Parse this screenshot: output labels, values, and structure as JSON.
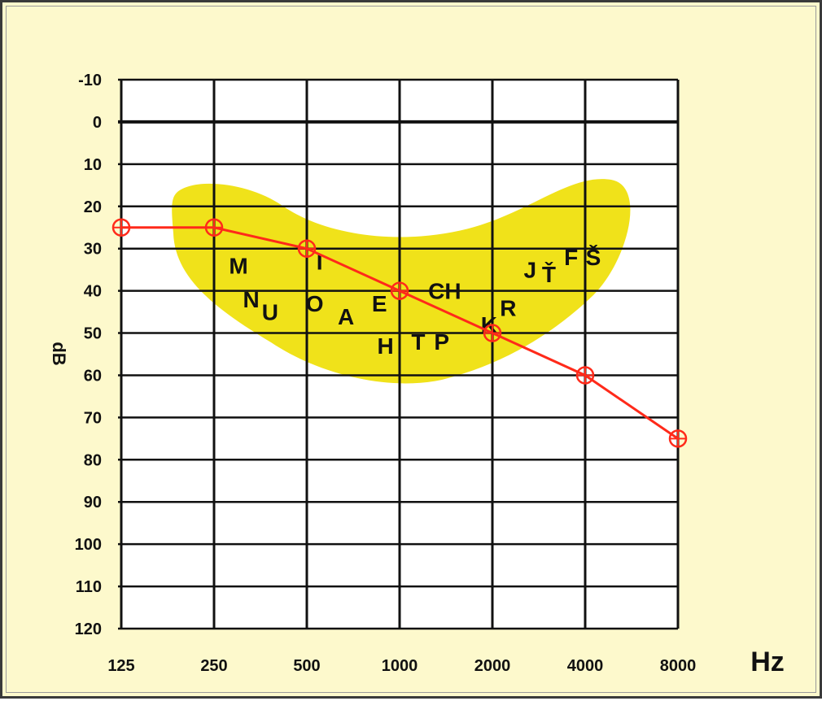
{
  "chart_data": {
    "type": "line",
    "xlabel": "Hz",
    "ylabel": "dB",
    "x_ticks": [
      "125",
      "250",
      "500",
      "1000",
      "2000",
      "4000",
      "8000"
    ],
    "y_ticks": [
      "-10",
      "0",
      "10",
      "20",
      "30",
      "40",
      "50",
      "60",
      "70",
      "80",
      "90",
      "100",
      "110",
      "120"
    ],
    "ylim": [
      -10,
      120
    ],
    "y_inverted": true,
    "x_scale": "log2",
    "grid": true,
    "series": [
      {
        "color": "#ff2a1a",
        "marker": "circle-cross",
        "x": [
          125,
          250,
          500,
          1000,
          2000,
          4000,
          8000
        ],
        "values": [
          25,
          25,
          30,
          40,
          50,
          60,
          75
        ]
      }
    ],
    "speech_banana": {
      "color": "#f0e21a",
      "phonemes": [
        {
          "text": "M",
          "freq": 300,
          "db": 34
        },
        {
          "text": "N",
          "freq": 330,
          "db": 42
        },
        {
          "text": "U",
          "freq": 380,
          "db": 45
        },
        {
          "text": "I",
          "freq": 550,
          "db": 33
        },
        {
          "text": "O",
          "freq": 530,
          "db": 43
        },
        {
          "text": "A",
          "freq": 670,
          "db": 46
        },
        {
          "text": "E",
          "freq": 860,
          "db": 43
        },
        {
          "text": "CH",
          "freq": 1400,
          "db": 40
        },
        {
          "text": "H",
          "freq": 900,
          "db": 53
        },
        {
          "text": "T",
          "freq": 1150,
          "db": 52
        },
        {
          "text": "P",
          "freq": 1370,
          "db": 52
        },
        {
          "text": "K",
          "freq": 1950,
          "db": 48
        },
        {
          "text": "R",
          "freq": 2250,
          "db": 44
        },
        {
          "text": "J",
          "freq": 2650,
          "db": 35
        },
        {
          "text": "Ť",
          "freq": 3050,
          "db": 36
        },
        {
          "text": "F",
          "freq": 3600,
          "db": 32
        },
        {
          "text": "Š",
          "freq": 4250,
          "db": 32
        }
      ]
    }
  }
}
